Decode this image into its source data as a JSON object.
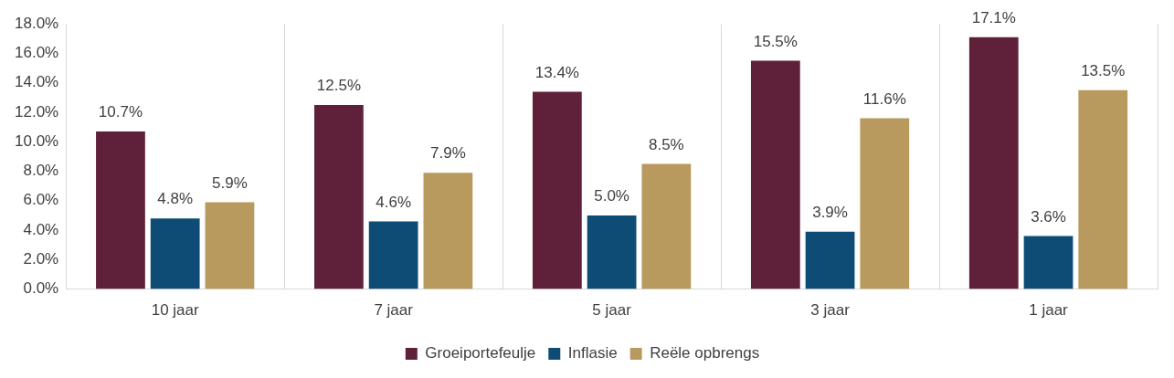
{
  "chart_data": {
    "type": "bar",
    "categories": [
      "10 jaar",
      "7 jaar",
      "5 jaar",
      "3 jaar",
      "1 jaar"
    ],
    "series": [
      {
        "name": "Groeiportefeulje",
        "color": "#5e2139",
        "values": [
          10.7,
          12.5,
          13.4,
          15.5,
          17.1
        ],
        "value_labels": [
          "10.7%",
          "12.5%",
          "13.4%",
          "15.5%",
          "17.1%"
        ]
      },
      {
        "name": "Inflasie",
        "color": "#0f4c75",
        "values": [
          4.8,
          4.6,
          5.0,
          3.9,
          3.6
        ],
        "value_labels": [
          "4.8%",
          "4.6%",
          "5.0%",
          "3.9%",
          "3.6%"
        ]
      },
      {
        "name": "Reële opbrengs",
        "color": "#b89a5e",
        "values": [
          5.9,
          7.9,
          8.5,
          11.6,
          13.5
        ],
        "value_labels": [
          "5.9%",
          "7.9%",
          "8.5%",
          "11.6%",
          "13.5%"
        ]
      }
    ],
    "ylim": [
      0,
      18
    ],
    "yticks": [
      {
        "value": 0,
        "label": "0.0%"
      },
      {
        "value": 2,
        "label": "2.0%"
      },
      {
        "value": 4,
        "label": "4.0%"
      },
      {
        "value": 6,
        "label": "6.0%"
      },
      {
        "value": 8,
        "label": "8.0%"
      },
      {
        "value": 10,
        "label": "10.0%"
      },
      {
        "value": 12,
        "label": "12.0%"
      },
      {
        "value": 14,
        "label": "14.0%"
      },
      {
        "value": 16,
        "label": "16.0%"
      },
      {
        "value": 18,
        "label": "18.0%"
      }
    ],
    "grid": "x",
    "legend": "bottom"
  }
}
